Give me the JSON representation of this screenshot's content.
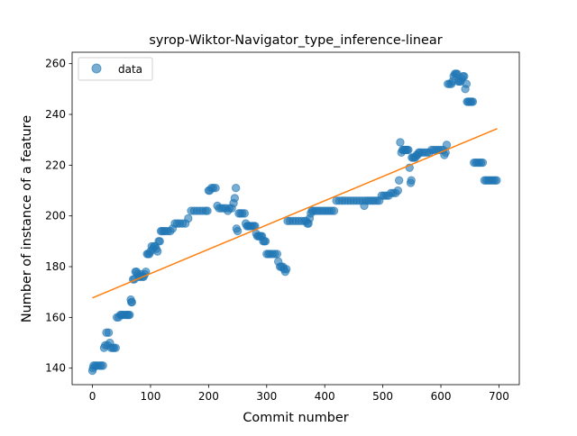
{
  "chart_data": {
    "type": "scatter",
    "title": "syrop-Wiktor-Navigator_type_inference-linear",
    "xlabel": "Commit number",
    "ylabel": "Number of instance of a feature",
    "xlim": [
      -35,
      735
    ],
    "ylim": [
      133.5,
      264.5
    ],
    "xticks": [
      0,
      100,
      200,
      300,
      400,
      500,
      600,
      700
    ],
    "yticks": [
      140,
      160,
      180,
      200,
      220,
      240,
      260
    ],
    "grid": false,
    "legend": {
      "placement": "top-left",
      "entries": [
        "data"
      ]
    },
    "colors": {
      "scatter": "#1f77b4",
      "fit": "#ff7f0e",
      "axes": "#000000"
    },
    "series": [
      {
        "name": "data",
        "kind": "scatter",
        "points": [
          [
            0,
            139
          ],
          [
            1,
            140
          ],
          [
            2,
            141
          ],
          [
            5,
            141
          ],
          [
            8,
            141
          ],
          [
            12,
            141
          ],
          [
            15,
            141
          ],
          [
            18,
            141
          ],
          [
            20,
            148
          ],
          [
            22,
            149
          ],
          [
            24,
            154
          ],
          [
            26,
            149
          ],
          [
            28,
            154
          ],
          [
            30,
            150
          ],
          [
            32,
            148
          ],
          [
            35,
            148
          ],
          [
            37,
            148
          ],
          [
            40,
            148
          ],
          [
            42,
            160
          ],
          [
            45,
            160
          ],
          [
            48,
            161
          ],
          [
            50,
            161
          ],
          [
            52,
            161
          ],
          [
            55,
            161
          ],
          [
            58,
            161
          ],
          [
            60,
            161
          ],
          [
            62,
            161
          ],
          [
            64,
            161
          ],
          [
            66,
            167
          ],
          [
            67,
            166
          ],
          [
            68,
            166
          ],
          [
            70,
            175
          ],
          [
            72,
            175
          ],
          [
            74,
            178
          ],
          [
            76,
            178
          ],
          [
            78,
            177
          ],
          [
            80,
            176
          ],
          [
            82,
            176
          ],
          [
            84,
            177
          ],
          [
            86,
            176
          ],
          [
            88,
            176
          ],
          [
            90,
            177
          ],
          [
            92,
            178
          ],
          [
            94,
            185
          ],
          [
            96,
            185
          ],
          [
            98,
            185
          ],
          [
            100,
            186
          ],
          [
            102,
            188
          ],
          [
            104,
            187
          ],
          [
            106,
            188
          ],
          [
            108,
            188
          ],
          [
            110,
            187
          ],
          [
            112,
            186
          ],
          [
            114,
            190
          ],
          [
            116,
            190
          ],
          [
            118,
            194
          ],
          [
            120,
            194
          ],
          [
            123,
            194
          ],
          [
            126,
            194
          ],
          [
            130,
            194
          ],
          [
            134,
            194
          ],
          [
            138,
            195
          ],
          [
            142,
            197
          ],
          [
            146,
            197
          ],
          [
            150,
            197
          ],
          [
            155,
            197
          ],
          [
            160,
            197
          ],
          [
            165,
            199
          ],
          [
            170,
            202
          ],
          [
            175,
            202
          ],
          [
            180,
            202
          ],
          [
            185,
            202
          ],
          [
            190,
            202
          ],
          [
            195,
            202
          ],
          [
            198,
            202
          ],
          [
            200,
            210
          ],
          [
            202,
            210
          ],
          [
            205,
            211
          ],
          [
            208,
            211
          ],
          [
            212,
            211
          ],
          [
            215,
            204
          ],
          [
            218,
            203
          ],
          [
            222,
            203
          ],
          [
            226,
            203
          ],
          [
            230,
            203
          ],
          [
            233,
            202
          ],
          [
            236,
            203
          ],
          [
            240,
            203
          ],
          [
            243,
            205
          ],
          [
            245,
            207
          ],
          [
            247,
            211
          ],
          [
            248,
            195
          ],
          [
            250,
            194
          ],
          [
            252,
            201
          ],
          [
            255,
            201
          ],
          [
            258,
            201
          ],
          [
            262,
            201
          ],
          [
            264,
            197
          ],
          [
            266,
            196
          ],
          [
            268,
            196
          ],
          [
            270,
            196
          ],
          [
            272,
            196
          ],
          [
            275,
            196
          ],
          [
            278,
            196
          ],
          [
            280,
            196
          ],
          [
            282,
            193
          ],
          [
            284,
            192
          ],
          [
            286,
            192
          ],
          [
            288,
            192
          ],
          [
            290,
            192
          ],
          [
            292,
            192
          ],
          [
            294,
            190
          ],
          [
            296,
            190
          ],
          [
            298,
            190
          ],
          [
            300,
            185
          ],
          [
            303,
            185
          ],
          [
            306,
            185
          ],
          [
            310,
            185
          ],
          [
            314,
            185
          ],
          [
            318,
            185
          ],
          [
            320,
            182
          ],
          [
            323,
            180
          ],
          [
            325,
            180
          ],
          [
            328,
            180
          ],
          [
            330,
            179
          ],
          [
            332,
            178
          ],
          [
            334,
            179
          ],
          [
            336,
            198
          ],
          [
            340,
            198
          ],
          [
            345,
            198
          ],
          [
            350,
            198
          ],
          [
            355,
            198
          ],
          [
            360,
            198
          ],
          [
            365,
            198
          ],
          [
            368,
            198
          ],
          [
            370,
            197
          ],
          [
            372,
            197
          ],
          [
            374,
            199
          ],
          [
            376,
            201
          ],
          [
            378,
            202
          ],
          [
            380,
            202
          ],
          [
            384,
            202
          ],
          [
            388,
            202
          ],
          [
            392,
            202
          ],
          [
            396,
            202
          ],
          [
            400,
            202
          ],
          [
            404,
            202
          ],
          [
            408,
            202
          ],
          [
            412,
            202
          ],
          [
            416,
            202
          ],
          [
            420,
            206
          ],
          [
            425,
            206
          ],
          [
            430,
            206
          ],
          [
            435,
            206
          ],
          [
            440,
            206
          ],
          [
            445,
            206
          ],
          [
            450,
            206
          ],
          [
            455,
            206
          ],
          [
            460,
            206
          ],
          [
            465,
            206
          ],
          [
            468,
            204
          ],
          [
            470,
            206
          ],
          [
            474,
            206
          ],
          [
            478,
            206
          ],
          [
            482,
            206
          ],
          [
            486,
            206
          ],
          [
            490,
            206
          ],
          [
            494,
            206
          ],
          [
            498,
            208
          ],
          [
            502,
            208
          ],
          [
            506,
            208
          ],
          [
            510,
            208
          ],
          [
            514,
            209
          ],
          [
            518,
            209
          ],
          [
            522,
            209
          ],
          [
            526,
            210
          ],
          [
            528,
            214
          ],
          [
            530,
            229
          ],
          [
            532,
            225
          ],
          [
            534,
            226
          ],
          [
            536,
            226
          ],
          [
            538,
            226
          ],
          [
            540,
            226
          ],
          [
            542,
            226
          ],
          [
            544,
            226
          ],
          [
            546,
            219
          ],
          [
            548,
            213
          ],
          [
            549,
            214
          ],
          [
            550,
            223
          ],
          [
            552,
            223
          ],
          [
            554,
            223
          ],
          [
            556,
            223
          ],
          [
            558,
            224
          ],
          [
            560,
            224
          ],
          [
            562,
            225
          ],
          [
            564,
            225
          ],
          [
            568,
            225
          ],
          [
            572,
            225
          ],
          [
            576,
            225
          ],
          [
            580,
            225
          ],
          [
            584,
            226
          ],
          [
            588,
            226
          ],
          [
            592,
            226
          ],
          [
            596,
            226
          ],
          [
            600,
            226
          ],
          [
            604,
            226
          ],
          [
            606,
            224
          ],
          [
            608,
            225
          ],
          [
            610,
            228
          ],
          [
            612,
            252
          ],
          [
            615,
            252
          ],
          [
            618,
            252
          ],
          [
            620,
            253
          ],
          [
            622,
            255
          ],
          [
            624,
            256
          ],
          [
            626,
            256
          ],
          [
            628,
            256
          ],
          [
            630,
            253
          ],
          [
            632,
            253
          ],
          [
            634,
            253
          ],
          [
            636,
            254
          ],
          [
            638,
            255
          ],
          [
            640,
            255
          ],
          [
            642,
            250
          ],
          [
            644,
            252
          ],
          [
            645,
            245
          ],
          [
            647,
            245
          ],
          [
            649,
            245
          ],
          [
            651,
            245
          ],
          [
            653,
            245
          ],
          [
            655,
            245
          ],
          [
            657,
            221
          ],
          [
            660,
            221
          ],
          [
            663,
            221
          ],
          [
            666,
            221
          ],
          [
            669,
            221
          ],
          [
            672,
            221
          ],
          [
            675,
            214
          ],
          [
            678,
            214
          ],
          [
            681,
            214
          ],
          [
            684,
            214
          ],
          [
            687,
            214
          ],
          [
            690,
            214
          ],
          [
            693,
            214
          ],
          [
            696,
            214
          ]
        ]
      },
      {
        "kind": "line",
        "points": [
          [
            0,
            167.7
          ],
          [
            697,
            234.4
          ]
        ]
      }
    ]
  }
}
